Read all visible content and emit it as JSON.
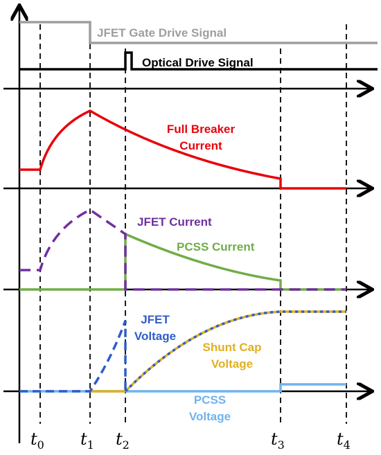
{
  "signals": [
    {
      "lines": [
        "JFET Gate Drive Signal"
      ]
    },
    {
      "lines": [
        "Optical Drive Signal"
      ]
    },
    {
      "lines": [
        "Full Breaker",
        "Current"
      ]
    },
    {
      "lines": [
        "JFET Current"
      ]
    },
    {
      "lines": [
        "PCSS Current"
      ]
    },
    {
      "lines": [
        "JFET",
        "Voltage"
      ]
    },
    {
      "lines": [
        "Shunt Cap",
        "Voltage"
      ]
    },
    {
      "lines": [
        "PCSS",
        "Voltage"
      ]
    }
  ],
  "time_markers": [
    {
      "symbol": "t",
      "subscript": "0"
    },
    {
      "symbol": "t",
      "subscript": "1"
    },
    {
      "symbol": "t",
      "subscript": "2"
    },
    {
      "symbol": "t",
      "subscript": "3"
    },
    {
      "symbol": "t",
      "subscript": "4"
    }
  ]
}
